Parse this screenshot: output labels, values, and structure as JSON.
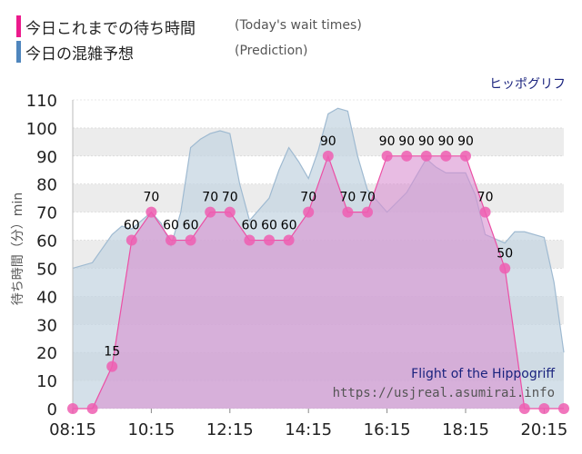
{
  "legend": [
    {
      "label": "今日これまでの待ち時間",
      "sublabel": "(Today's wait times)",
      "color": "#ec1a8c"
    },
    {
      "label": "今日の混雑予想",
      "sublabel": "(Prediction)",
      "color": "#4f86bd"
    }
  ],
  "ride_name": "ヒッポグリフ",
  "watermark": {
    "title": "Flight of the Hippogriff",
    "url": "https://usjreal.asumirai.info"
  },
  "colors": {
    "actual_line": "#ec4fa5",
    "actual_fill": "#d88fd0",
    "actual_marker": "#ee5eb2",
    "prediction_line": "#9fbad1",
    "prediction_fill": "#c6d6e2",
    "grid_band": "#ececec",
    "grid_line": "#d0d0d0",
    "label_text": "#000000",
    "axis_text": "#222222"
  },
  "chart_data": {
    "type": "area",
    "xlabel": "",
    "ylabel": "待ち時間（分）min",
    "ylim": [
      0,
      110
    ],
    "yticks": [
      0,
      10,
      20,
      30,
      40,
      50,
      60,
      70,
      80,
      90,
      100,
      110
    ],
    "xlim": [
      "08:15",
      "20:45"
    ],
    "xticks": [
      "08:15",
      "10:15",
      "12:15",
      "14:15",
      "16:15",
      "18:15",
      "20:15"
    ],
    "grid": true,
    "series": [
      {
        "name": "今日これまでの待ち時間",
        "x": [
          "08:15",
          "08:45",
          "09:15",
          "09:45",
          "10:15",
          "10:45",
          "11:15",
          "11:45",
          "12:15",
          "12:45",
          "13:15",
          "13:45",
          "14:15",
          "14:45",
          "15:15",
          "15:45",
          "16:15",
          "16:45",
          "17:15",
          "17:45",
          "18:15",
          "18:45",
          "19:15",
          "19:45",
          "20:15",
          "20:45"
        ],
        "values": [
          0,
          0,
          15,
          60,
          70,
          60,
          60,
          70,
          70,
          60,
          60,
          60,
          70,
          90,
          70,
          70,
          90,
          90,
          90,
          90,
          90,
          70,
          50,
          0,
          0,
          0
        ],
        "data_labels": [
          "",
          "",
          "15",
          "60",
          "70",
          "60",
          "60",
          "70",
          "70",
          "60",
          "60",
          "60",
          "70",
          "90",
          "70",
          "70",
          "90",
          "90",
          "90",
          "90",
          "90",
          "70",
          "50",
          "",
          "",
          ""
        ]
      },
      {
        "name": "今日の混雑予想",
        "x": [
          "08:15",
          "08:45",
          "09:15",
          "09:30",
          "09:45",
          "10:15",
          "10:30",
          "10:45",
          "11:00",
          "11:15",
          "11:30",
          "11:45",
          "12:00",
          "12:15",
          "12:30",
          "12:45",
          "13:15",
          "13:30",
          "13:45",
          "14:00",
          "14:15",
          "14:30",
          "14:45",
          "15:00",
          "15:15",
          "15:30",
          "15:45",
          "16:15",
          "16:45",
          "17:00",
          "17:15",
          "17:30",
          "17:45",
          "18:15",
          "18:30",
          "18:45",
          "19:15",
          "19:30",
          "19:45",
          "20:15",
          "20:30",
          "20:45"
        ],
        "values": [
          50,
          52,
          62,
          65,
          64,
          70,
          66,
          58,
          70,
          93,
          96,
          98,
          99,
          98,
          80,
          67,
          75,
          85,
          93,
          88,
          82,
          92,
          105,
          107,
          106,
          90,
          78,
          70,
          77,
          83,
          89,
          86,
          84,
          84,
          76,
          62,
          59,
          63,
          63,
          61,
          45,
          20
        ]
      }
    ]
  }
}
